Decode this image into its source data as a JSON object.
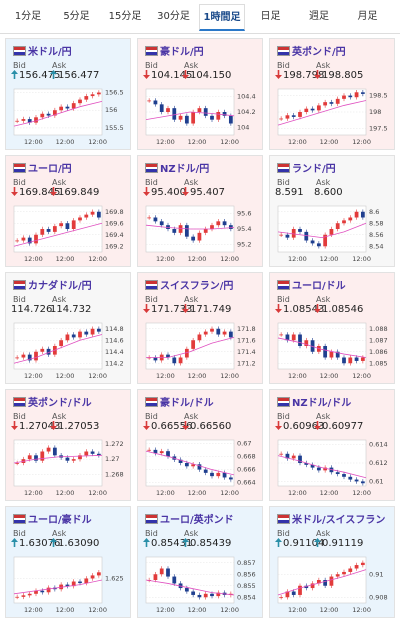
{
  "tabs": [
    "1分足",
    "5分足",
    "15分足",
    "30分足",
    "1時間足",
    "日足",
    "週足",
    "月足"
  ],
  "active_tab": 4,
  "labels": {
    "bid": "Bid",
    "ask": "Ask"
  },
  "xticks": [
    "12:00",
    "12:00",
    "12:00"
  ],
  "cards": [
    {
      "name": "米ドル/円",
      "direction": "up",
      "bid": "156.475",
      "ask": "156.477",
      "ylim": [
        155.3,
        156.6
      ],
      "yticks": [
        156.5,
        156,
        155.5
      ],
      "closes": [
        155.7,
        155.75,
        155.65,
        155.8,
        155.9,
        155.85,
        156.0,
        156.1,
        156.05,
        156.2,
        156.3,
        156.4,
        156.45,
        156.5
      ],
      "ma": [
        155.55,
        155.7,
        155.9,
        156.1,
        156.25
      ]
    },
    {
      "name": "豪ドル/円",
      "direction": "down",
      "bid": "104.145",
      "ask": "104.150",
      "ylim": [
        103.9,
        104.5
      ],
      "yticks": [
        104.4,
        104.2,
        104
      ],
      "closes": [
        104.35,
        104.3,
        104.2,
        104.25,
        104.1,
        104.15,
        104.05,
        104.2,
        104.25,
        104.15,
        104.1,
        104.2,
        104.15,
        104.05
      ],
      "ma": [
        104.1,
        104.15,
        104.2,
        104.18,
        104.15
      ]
    },
    {
      "name": "英ポンド/円",
      "direction": "down",
      "bid": "198.798",
      "ask": "198.805",
      "ylim": [
        197.3,
        198.7
      ],
      "yticks": [
        198.5,
        198,
        197.5
      ],
      "closes": [
        197.8,
        197.9,
        197.85,
        198.0,
        198.1,
        198.05,
        198.2,
        198.3,
        198.25,
        198.4,
        198.5,
        198.45,
        198.6,
        198.55
      ],
      "ma": [
        197.6,
        197.8,
        198.0,
        198.2,
        198.35
      ]
    },
    {
      "name": "ユーロ/円",
      "direction": "down",
      "bid": "169.845",
      "ask": "169.849",
      "ylim": [
        169.1,
        169.9
      ],
      "yticks": [
        169.8,
        169.6,
        169.4,
        169.2
      ],
      "closes": [
        169.3,
        169.35,
        169.25,
        169.4,
        169.5,
        169.45,
        169.55,
        169.6,
        169.5,
        169.65,
        169.7,
        169.75,
        169.8,
        169.7
      ],
      "ma": [
        169.2,
        169.3,
        169.4,
        169.5,
        169.6
      ]
    },
    {
      "name": "NZドル/円",
      "direction": "down",
      "bid": "95.400",
      "ask": "95.407",
      "ylim": [
        95.1,
        95.7
      ],
      "yticks": [
        95.6,
        95.4,
        95.2
      ],
      "closes": [
        95.55,
        95.5,
        95.45,
        95.4,
        95.35,
        95.45,
        95.3,
        95.25,
        95.35,
        95.4,
        95.45,
        95.5,
        95.45,
        95.4
      ],
      "ma": [
        95.45,
        95.42,
        95.4,
        95.4,
        95.42
      ]
    },
    {
      "name": "ランド/円",
      "direction": null,
      "bid": "8.591",
      "ask": "8.600",
      "ylim": [
        8.53,
        8.61
      ],
      "yticks": [
        8.6,
        8.58,
        8.56,
        8.54
      ],
      "closes": [
        8.56,
        8.555,
        8.57,
        8.565,
        8.55,
        8.545,
        8.54,
        8.56,
        8.57,
        8.58,
        8.585,
        8.59,
        8.6,
        8.59
      ],
      "ma": [
        8.565,
        8.56,
        8.555,
        8.565,
        8.58
      ]
    },
    {
      "name": "カナダドル/円",
      "direction": null,
      "bid": "114.726",
      "ask": "114.732",
      "ylim": [
        114.1,
        114.9
      ],
      "yticks": [
        114.8,
        114.6,
        114.4,
        114.2
      ],
      "closes": [
        114.3,
        114.35,
        114.25,
        114.4,
        114.45,
        114.35,
        114.5,
        114.6,
        114.7,
        114.65,
        114.75,
        114.7,
        114.8,
        114.75
      ],
      "ma": [
        114.2,
        114.3,
        114.45,
        114.6,
        114.7
      ]
    },
    {
      "name": "スイスフラン/円",
      "direction": "down",
      "bid": "171.733",
      "ask": "171.749",
      "ylim": [
        171.1,
        171.9
      ],
      "yticks": [
        171.8,
        171.6,
        171.4,
        171.2
      ],
      "closes": [
        171.3,
        171.25,
        171.35,
        171.3,
        171.2,
        171.3,
        171.45,
        171.6,
        171.7,
        171.75,
        171.8,
        171.7,
        171.75,
        171.65
      ],
      "ma": [
        171.3,
        171.3,
        171.4,
        171.55,
        171.65
      ]
    },
    {
      "name": "ユーロ/ドル",
      "direction": "down",
      "bid": "1.08543",
      "ask": "1.08546",
      "ylim": [
        1.0845,
        1.0885
      ],
      "yticks": [
        1.088,
        1.087,
        1.086,
        1.085
      ],
      "closes": [
        1.0875,
        1.087,
        1.0875,
        1.0865,
        1.087,
        1.086,
        1.0865,
        1.0855,
        1.086,
        1.0855,
        1.085,
        1.0855,
        1.0852,
        1.0855
      ],
      "ma": [
        1.0872,
        1.0868,
        1.0862,
        1.0858,
        1.0855
      ]
    },
    {
      "name": "英ポンド/ドル",
      "direction": "down",
      "bid": "1.27043",
      "ask": "1.27053",
      "ylim": [
        1.2665,
        1.2725
      ],
      "yticks": [
        1.272,
        1.27,
        1.268
      ],
      "closes": [
        1.2695,
        1.27,
        1.2705,
        1.2698,
        1.271,
        1.2715,
        1.2705,
        1.2702,
        1.2698,
        1.27,
        1.2705,
        1.271,
        1.2707,
        1.2705
      ],
      "ma": [
        1.2695,
        1.27,
        1.2703,
        1.2704,
        1.2705
      ]
    },
    {
      "name": "豪ドル/ドル",
      "direction": "down",
      "bid": "0.66556",
      "ask": "0.66560",
      "ylim": [
        0.6635,
        0.6705
      ],
      "yticks": [
        0.67,
        0.668,
        0.666,
        0.664
      ],
      "closes": [
        0.669,
        0.6685,
        0.6688,
        0.668,
        0.6675,
        0.667,
        0.6665,
        0.6668,
        0.666,
        0.6655,
        0.665,
        0.6655,
        0.6648,
        0.6645
      ],
      "ma": [
        0.6688,
        0.668,
        0.667,
        0.666,
        0.6652
      ]
    },
    {
      "name": "NZドル/ドル",
      "direction": "down",
      "bid": "0.60963",
      "ask": "0.60977",
      "ylim": [
        0.6095,
        0.6145
      ],
      "yticks": [
        0.614,
        0.612,
        0.61
      ],
      "closes": [
        0.613,
        0.6125,
        0.6128,
        0.612,
        0.6118,
        0.6115,
        0.6112,
        0.6115,
        0.611,
        0.6108,
        0.6105,
        0.6102,
        0.61,
        0.6098
      ],
      "ma": [
        0.6128,
        0.6122,
        0.6115,
        0.611,
        0.6104
      ]
    },
    {
      "name": "ユーロ/豪ドル",
      "direction": "up",
      "bid": "1.63076",
      "ask": "1.63090",
      "ylim": [
        1.617,
        1.632
      ],
      "yticks": [
        1.625
      ],
      "closes": [
        1.619,
        1.6195,
        1.62,
        1.621,
        1.6205,
        1.622,
        1.6215,
        1.623,
        1.6225,
        1.624,
        1.6235,
        1.625,
        1.626,
        1.627
      ],
      "ma": [
        1.62,
        1.621,
        1.622,
        1.623,
        1.6245
      ]
    },
    {
      "name": "ユーロ/英ポンド",
      "direction": "up",
      "bid": "0.85431",
      "ask": "0.85439",
      "ylim": [
        0.8535,
        0.8575
      ],
      "yticks": [
        0.857,
        0.856,
        0.855,
        0.854
      ],
      "closes": [
        0.8555,
        0.856,
        0.8565,
        0.8558,
        0.8552,
        0.8548,
        0.8545,
        0.8542,
        0.854,
        0.8543,
        0.8541,
        0.8544,
        0.8542,
        0.8543
      ],
      "ma": [
        0.8555,
        0.8552,
        0.8548,
        0.8544,
        0.8542
      ]
    },
    {
      "name": "米ドル/スイスフラン",
      "direction": "up",
      "bid": "0.91104",
      "ask": "0.91119",
      "ylim": [
        0.9075,
        0.9115
      ],
      "yticks": [
        0.91,
        0.908
      ],
      "closes": [
        0.908,
        0.9085,
        0.9082,
        0.909,
        0.9088,
        0.9092,
        0.9095,
        0.909,
        0.9098,
        0.91,
        0.9102,
        0.9105,
        0.9108,
        0.911
      ],
      "ma": [
        0.9082,
        0.9088,
        0.9093,
        0.9098,
        0.9104
      ]
    }
  ]
}
